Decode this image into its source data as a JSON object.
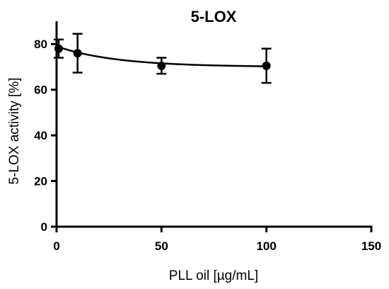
{
  "chart_data": {
    "type": "scatter",
    "title": "5-LOX",
    "xlabel": "PLL oil [µg/mL]",
    "ylabel": "5-LOX activity [%]",
    "xlim": [
      0,
      150
    ],
    "ylim": [
      0,
      90
    ],
    "x_ticks": [
      0,
      50,
      100,
      150
    ],
    "y_ticks": [
      0,
      20,
      40,
      60,
      80
    ],
    "grid": false,
    "legend": "none",
    "series": [
      {
        "x": [
          1,
          10,
          50,
          100
        ],
        "values": [
          78,
          76,
          70.5,
          70.5
        ],
        "error_low": [
          4,
          8.5,
          3.5,
          7.5
        ],
        "error_high": [
          4,
          8.5,
          3.5,
          7.5
        ]
      }
    ],
    "fit_curve": {
      "y_start": 79,
      "y_end": 70,
      "decay": 0.035
    },
    "color": "#000000"
  }
}
